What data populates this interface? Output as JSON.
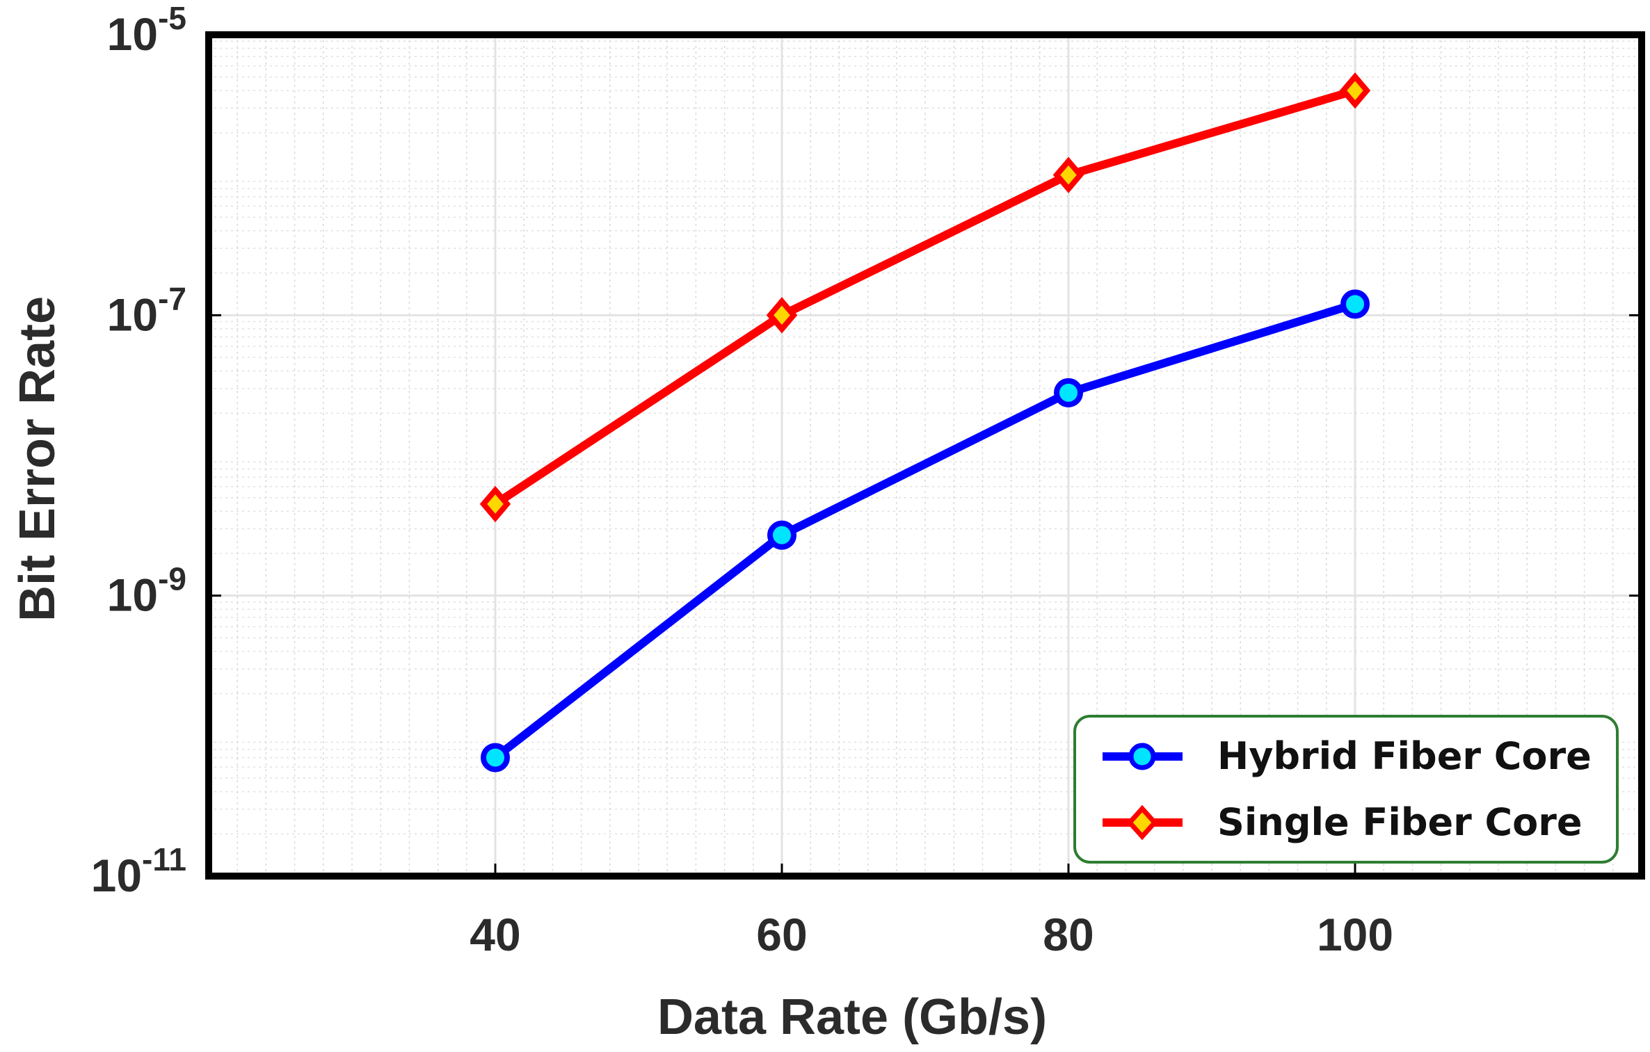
{
  "chart_data": {
    "type": "line",
    "xlabel": "Data Rate (Gb/s)",
    "ylabel": "Bit Error Rate",
    "yscale": "log",
    "xlim": [
      20,
      120
    ],
    "ylim_exp": [
      -11,
      -5
    ],
    "x_ticks": [
      40,
      60,
      80,
      100
    ],
    "y_ticks": [
      {
        "base": "10",
        "exp": "-5",
        "value": -5
      },
      {
        "base": "10",
        "exp": "-7",
        "value": -7
      },
      {
        "base": "10",
        "exp": "-9",
        "value": -9
      },
      {
        "base": "10",
        "exp": "-11",
        "value": -11
      }
    ],
    "grid": true,
    "legend_position": "bottom-right",
    "series": [
      {
        "name": "Hybrid Fiber Core",
        "color": "#0000ff",
        "marker": "circle",
        "marker_fill": "#00e5ff",
        "x": [
          40,
          60,
          80,
          100
        ],
        "values": [
          7e-11,
          2.7e-09,
          2.8e-08,
          1.2e-07
        ]
      },
      {
        "name": "Single Fiber Core",
        "color": "#ff0000",
        "marker": "diamond",
        "marker_fill": "#ffd700",
        "x": [
          40,
          60,
          80,
          100
        ],
        "values": [
          4.5e-09,
          1e-07,
          1e-06,
          4e-06
        ]
      }
    ]
  }
}
